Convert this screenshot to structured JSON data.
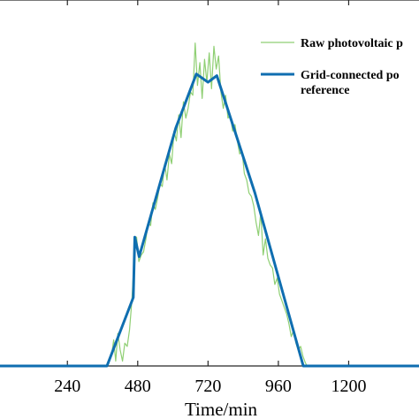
{
  "chart_data": {
    "type": "line",
    "xlabel": "Time/min",
    "ylabel": "",
    "xlim": [
      10,
      1440
    ],
    "ylim": [
      0,
      1
    ],
    "xticks": [
      240,
      480,
      720,
      960,
      1200
    ],
    "xtick_labels": [
      "240",
      "480",
      "720",
      "960",
      "1200"
    ],
    "grid": false,
    "legend_position": "top-right",
    "series": [
      {
        "name": "Raw photovoltaic p",
        "color": "#8fcf73",
        "style": "thin-noisy",
        "x": [
          0,
          375,
          382,
          390,
          398,
          405,
          412,
          420,
          428,
          436,
          444,
          452,
          460,
          468,
          476,
          484,
          492,
          500,
          508,
          516,
          524,
          532,
          540,
          548,
          556,
          564,
          572,
          580,
          588,
          596,
          604,
          612,
          620,
          628,
          636,
          644,
          652,
          660,
          668,
          676,
          684,
          692,
          700,
          708,
          716,
          724,
          732,
          740,
          748,
          756,
          764,
          772,
          780,
          788,
          796,
          804,
          812,
          820,
          828,
          836,
          844,
          852,
          860,
          868,
          876,
          884,
          892,
          900,
          908,
          916,
          924,
          932,
          940,
          948,
          956,
          964,
          972,
          980,
          988,
          996,
          1004,
          1012,
          1020,
          1028,
          1036,
          1044,
          1052,
          1058,
          1440
        ],
        "values": [
          0.0,
          0.0,
          0.02,
          0.03,
          0.08,
          0.015,
          0.1,
          0.05,
          0.015,
          0.07,
          0.06,
          0.11,
          0.2,
          0.33,
          0.395,
          0.32,
          0.34,
          0.35,
          0.39,
          0.44,
          0.43,
          0.5,
          0.48,
          0.515,
          0.56,
          0.55,
          0.62,
          0.57,
          0.65,
          0.62,
          0.72,
          0.69,
          0.77,
          0.7,
          0.81,
          0.76,
          0.79,
          0.84,
          0.83,
          0.99,
          0.86,
          0.93,
          0.82,
          0.94,
          0.87,
          0.96,
          0.85,
          0.98,
          0.91,
          0.95,
          0.84,
          0.79,
          0.83,
          0.76,
          0.77,
          0.72,
          0.74,
          0.69,
          0.65,
          0.66,
          0.59,
          0.57,
          0.53,
          0.52,
          0.49,
          0.44,
          0.4,
          0.47,
          0.34,
          0.39,
          0.33,
          0.31,
          0.3,
          0.25,
          0.27,
          0.22,
          0.2,
          0.18,
          0.16,
          0.13,
          0.09,
          0.11,
          0.07,
          0.05,
          0.06,
          0.03,
          0.01,
          0.0,
          0.0
        ]
      },
      {
        "name": "Grid-connected po",
        "name_line2": "reference",
        "color": "#0f6eb0",
        "style": "thick",
        "x": [
          0,
          375,
          465,
          470,
          485,
          610,
          680,
          720,
          750,
          880,
          1045,
          1440
        ],
        "values": [
          0.0,
          0.0,
          0.21,
          0.395,
          0.335,
          0.73,
          0.895,
          0.87,
          0.89,
          0.53,
          0.0,
          0.0
        ]
      }
    ]
  }
}
